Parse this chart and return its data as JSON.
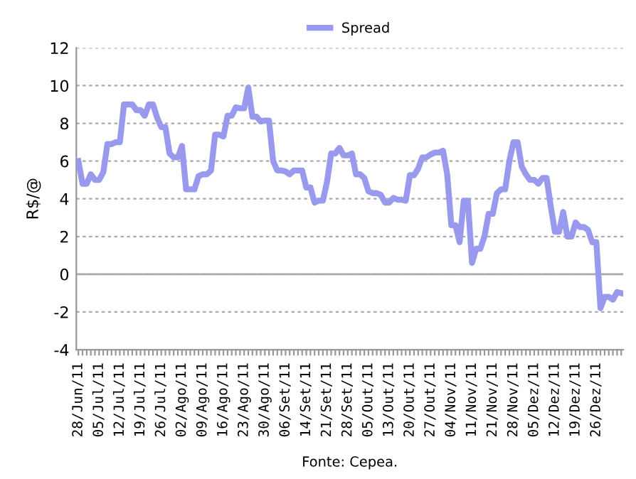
{
  "chart_data": {
    "type": "line",
    "categories": [
      "28/Jun/11",
      null,
      null,
      null,
      null,
      "05/Jul/11",
      null,
      null,
      null,
      null,
      "12/Jul/11",
      null,
      null,
      null,
      null,
      "19/Jul/11",
      null,
      null,
      null,
      null,
      "26/Jul/11",
      null,
      null,
      null,
      null,
      "02/Ago/11",
      null,
      null,
      null,
      null,
      "09/Ago/11",
      null,
      null,
      null,
      null,
      "16/Ago/11",
      null,
      null,
      null,
      null,
      "23/Ago/11",
      null,
      null,
      null,
      null,
      "30/Ago/11",
      null,
      null,
      null,
      null,
      "06/Set/11",
      null,
      null,
      null,
      null,
      "14/Set/11",
      null,
      null,
      null,
      null,
      "21/Set/11",
      null,
      null,
      null,
      null,
      "28/Set/11",
      null,
      null,
      null,
      null,
      "05/Out/11",
      null,
      null,
      null,
      null,
      "13/Out/11",
      null,
      null,
      null,
      null,
      "20/Out/11",
      null,
      null,
      null,
      null,
      "27/Out/11",
      null,
      null,
      null,
      null,
      "04/Nov/11",
      null,
      null,
      null,
      null,
      "11/Nov/11",
      null,
      null,
      null,
      null,
      "21/Nov/11",
      null,
      null,
      null,
      null,
      "28/Nov/11",
      null,
      null,
      null,
      null,
      "05/Dez/11",
      null,
      null,
      null,
      null,
      "12/Dez/11",
      null,
      null,
      null,
      null,
      "19/Dez/11",
      null,
      null,
      null,
      null,
      "26/Dez/11",
      null,
      null,
      null,
      null,
      null,
      null
    ],
    "series": [
      {
        "name": "Spread",
        "color": "#9999ee",
        "values": [
          6.0,
          4.8,
          4.8,
          5.3,
          5.0,
          5.0,
          5.4,
          6.9,
          6.9,
          7.0,
          7.0,
          9.0,
          9.0,
          9.0,
          8.7,
          8.7,
          8.4,
          9.0,
          9.0,
          8.3,
          7.8,
          7.8,
          6.4,
          6.2,
          6.2,
          6.8,
          4.5,
          4.5,
          4.5,
          5.2,
          5.3,
          5.3,
          5.5,
          7.4,
          7.4,
          7.3,
          8.4,
          8.4,
          8.85,
          8.8,
          8.8,
          9.9,
          8.35,
          8.35,
          8.1,
          8.15,
          8.15,
          6.0,
          5.5,
          5.5,
          5.45,
          5.3,
          5.5,
          5.5,
          5.5,
          4.6,
          4.6,
          3.8,
          3.9,
          3.9,
          4.9,
          6.4,
          6.4,
          6.7,
          6.3,
          6.3,
          6.4,
          5.3,
          5.3,
          5.1,
          4.4,
          4.3,
          4.3,
          4.2,
          3.8,
          3.8,
          4.05,
          3.95,
          3.95,
          3.9,
          5.25,
          5.25,
          5.6,
          6.2,
          6.2,
          6.35,
          6.45,
          6.45,
          6.55,
          5.3,
          2.6,
          2.6,
          1.7,
          3.9,
          3.9,
          0.6,
          1.35,
          1.35,
          2.0,
          3.2,
          3.2,
          4.3,
          4.5,
          4.5,
          6.0,
          7.0,
          7.0,
          5.7,
          5.3,
          5.0,
          5.0,
          4.8,
          5.1,
          5.1,
          3.6,
          2.25,
          2.25,
          3.3,
          2.0,
          2.0,
          2.75,
          2.5,
          2.5,
          2.35,
          1.7,
          1.7,
          -1.8,
          -1.2,
          -1.2,
          -1.35,
          -0.95,
          -1.0
        ]
      }
    ],
    "ylabel": "R$/@",
    "ylim": [
      -4,
      12
    ],
    "yticks": [
      -4,
      -2,
      0,
      2,
      4,
      6,
      8,
      10,
      12
    ],
    "ref_lines": [
      {
        "axis": "y",
        "value": 0,
        "color": "#aaaaaa",
        "line_style": "solid"
      }
    ],
    "grid": "y",
    "legend": "top",
    "line_style": "solid",
    "marker": "none",
    "annotations": [
      "Fonte: Cepea."
    ]
  }
}
